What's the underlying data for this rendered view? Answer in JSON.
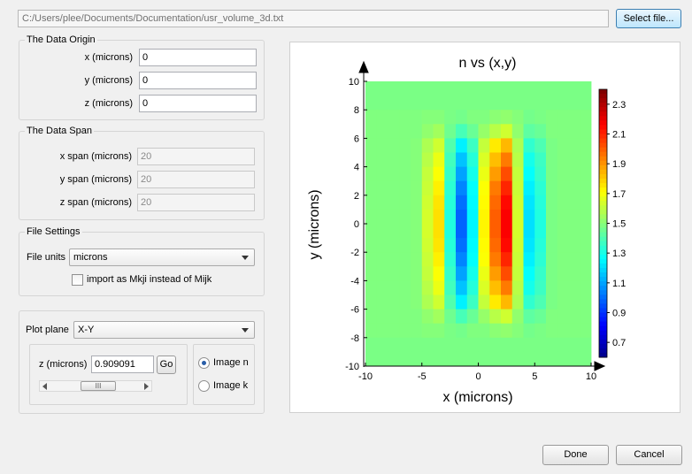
{
  "file": {
    "path": "C:/Users/plee/Documents/Documentation/usr_volume_3d.txt",
    "select_label": "Select file..."
  },
  "origin": {
    "title": "The Data Origin",
    "x_label": "x (microns)",
    "x_value": "0",
    "y_label": "y (microns)",
    "y_value": "0",
    "z_label": "z (microns)",
    "z_value": "0"
  },
  "span": {
    "title": "The Data Span",
    "x_label": "x span (microns)",
    "x_value": "20",
    "y_label": "y span (microns)",
    "y_value": "20",
    "z_label": "z span (microns)",
    "z_value": "20"
  },
  "settings": {
    "title": "File Settings",
    "units_label": "File units",
    "units_value": "microns",
    "import_label": "import as Mkji instead of Mijk",
    "import_checked": false
  },
  "plot_controls": {
    "plane_label": "Plot plane",
    "plane_value": "X-Y",
    "z_label": "z (microns)",
    "z_value": "0.909091",
    "go_label": "Go",
    "scroll_thumb_label": "III",
    "radio_n_label": "Image n",
    "radio_k_label": "Image k",
    "selected": "n"
  },
  "buttons": {
    "done": "Done",
    "cancel": "Cancel"
  },
  "icons": {
    "scroll_left": "triangle-left-icon",
    "scroll_right": "triangle-right-icon",
    "combo_arrow": "chevron-down-icon"
  },
  "chart_data": {
    "type": "heatmap",
    "title": "n  vs  (x,y)",
    "xlabel": "x  (microns)",
    "ylabel": "y  (microns)",
    "xlim": [
      -10,
      10
    ],
    "ylim": [
      -10,
      10
    ],
    "x_ticks": [
      -10,
      -5,
      0,
      5,
      10
    ],
    "y_ticks": [
      10,
      8,
      6,
      4,
      2,
      0,
      -2,
      -4,
      -6,
      -8,
      -10
    ],
    "colorbar": {
      "min": 0.6,
      "max": 2.4,
      "ticks": [
        "2.3",
        "2.1",
        "1.9",
        "1.7",
        "1.5",
        "1.3",
        "1.1",
        "0.9",
        "0.7"
      ]
    },
    "grid": {
      "nx": 20,
      "ny": 20
    },
    "values": [
      [
        1.49,
        1.49,
        1.49,
        1.49,
        1.49,
        1.49,
        1.49,
        1.49,
        1.49,
        1.49,
        1.49,
        1.49,
        1.49,
        1.49,
        1.49,
        1.49,
        1.49,
        1.49,
        1.49,
        1.49
      ],
      [
        1.49,
        1.49,
        1.49,
        1.49,
        1.49,
        1.49,
        1.49,
        1.49,
        1.49,
        1.49,
        1.49,
        1.49,
        1.49,
        1.49,
        1.49,
        1.49,
        1.49,
        1.49,
        1.49,
        1.49
      ],
      [
        1.5,
        1.5,
        1.5,
        1.5,
        1.5,
        1.51,
        1.51,
        1.49,
        1.48,
        1.5,
        1.5,
        1.52,
        1.53,
        1.51,
        1.48,
        1.49,
        1.5,
        1.5,
        1.5,
        1.5
      ],
      [
        1.5,
        1.5,
        1.5,
        1.5,
        1.5,
        1.53,
        1.56,
        1.47,
        1.4,
        1.46,
        1.54,
        1.6,
        1.64,
        1.53,
        1.44,
        1.46,
        1.5,
        1.5,
        1.5,
        1.5
      ],
      [
        1.5,
        1.5,
        1.5,
        1.5,
        1.51,
        1.58,
        1.64,
        1.42,
        1.25,
        1.38,
        1.62,
        1.76,
        1.85,
        1.58,
        1.36,
        1.41,
        1.49,
        1.5,
        1.5,
        1.5
      ],
      [
        1.5,
        1.5,
        1.5,
        1.5,
        1.51,
        1.6,
        1.69,
        1.39,
        1.17,
        1.34,
        1.66,
        1.84,
        1.96,
        1.6,
        1.31,
        1.38,
        1.49,
        1.5,
        1.5,
        1.5
      ],
      [
        1.5,
        1.5,
        1.5,
        1.5,
        1.51,
        1.62,
        1.72,
        1.37,
        1.11,
        1.31,
        1.69,
        1.9,
        2.04,
        1.62,
        1.28,
        1.37,
        1.49,
        1.5,
        1.5,
        1.5
      ],
      [
        1.5,
        1.5,
        1.5,
        1.5,
        1.51,
        1.63,
        1.75,
        1.35,
        1.06,
        1.28,
        1.72,
        1.96,
        2.11,
        1.63,
        1.25,
        1.35,
        1.49,
        1.5,
        1.5,
        1.5
      ],
      [
        1.5,
        1.5,
        1.5,
        1.5,
        1.51,
        1.64,
        1.77,
        1.34,
        1.02,
        1.27,
        1.73,
        1.99,
        2.16,
        1.64,
        1.23,
        1.34,
        1.49,
        1.5,
        1.5,
        1.5
      ],
      [
        1.5,
        1.5,
        1.5,
        1.5,
        1.51,
        1.65,
        1.78,
        1.33,
        1.0,
        1.26,
        1.74,
        2.01,
        2.18,
        1.65,
        1.22,
        1.33,
        1.49,
        1.5,
        1.5,
        1.5
      ],
      [
        1.5,
        1.5,
        1.5,
        1.5,
        1.51,
        1.65,
        1.78,
        1.33,
        1.0,
        1.26,
        1.74,
        2.01,
        2.18,
        1.65,
        1.22,
        1.33,
        1.49,
        1.5,
        1.5,
        1.5
      ],
      [
        1.5,
        1.5,
        1.5,
        1.5,
        1.51,
        1.64,
        1.77,
        1.34,
        1.02,
        1.27,
        1.73,
        1.99,
        2.16,
        1.64,
        1.23,
        1.34,
        1.49,
        1.5,
        1.5,
        1.5
      ],
      [
        1.5,
        1.5,
        1.5,
        1.5,
        1.51,
        1.63,
        1.75,
        1.35,
        1.06,
        1.28,
        1.72,
        1.96,
        2.11,
        1.63,
        1.25,
        1.35,
        1.49,
        1.5,
        1.5,
        1.5
      ],
      [
        1.5,
        1.5,
        1.5,
        1.5,
        1.51,
        1.62,
        1.72,
        1.37,
        1.11,
        1.31,
        1.69,
        1.9,
        2.04,
        1.62,
        1.28,
        1.37,
        1.49,
        1.5,
        1.5,
        1.5
      ],
      [
        1.5,
        1.5,
        1.5,
        1.5,
        1.51,
        1.6,
        1.69,
        1.39,
        1.17,
        1.34,
        1.66,
        1.84,
        1.96,
        1.6,
        1.31,
        1.38,
        1.49,
        1.5,
        1.5,
        1.5
      ],
      [
        1.5,
        1.5,
        1.5,
        1.5,
        1.51,
        1.58,
        1.64,
        1.42,
        1.25,
        1.38,
        1.62,
        1.76,
        1.85,
        1.58,
        1.36,
        1.41,
        1.49,
        1.5,
        1.5,
        1.5
      ],
      [
        1.5,
        1.5,
        1.5,
        1.5,
        1.5,
        1.53,
        1.56,
        1.47,
        1.4,
        1.46,
        1.54,
        1.6,
        1.64,
        1.53,
        1.44,
        1.46,
        1.5,
        1.5,
        1.5,
        1.5
      ],
      [
        1.5,
        1.5,
        1.5,
        1.5,
        1.5,
        1.51,
        1.51,
        1.49,
        1.48,
        1.5,
        1.5,
        1.52,
        1.53,
        1.51,
        1.48,
        1.49,
        1.5,
        1.5,
        1.5,
        1.5
      ],
      [
        1.49,
        1.49,
        1.49,
        1.49,
        1.49,
        1.49,
        1.49,
        1.49,
        1.49,
        1.49,
        1.49,
        1.49,
        1.49,
        1.49,
        1.49,
        1.49,
        1.49,
        1.49,
        1.49,
        1.49
      ],
      [
        1.49,
        1.49,
        1.49,
        1.49,
        1.49,
        1.49,
        1.49,
        1.49,
        1.49,
        1.49,
        1.49,
        1.49,
        1.49,
        1.49,
        1.49,
        1.49,
        1.49,
        1.49,
        1.49,
        1.49
      ]
    ]
  }
}
